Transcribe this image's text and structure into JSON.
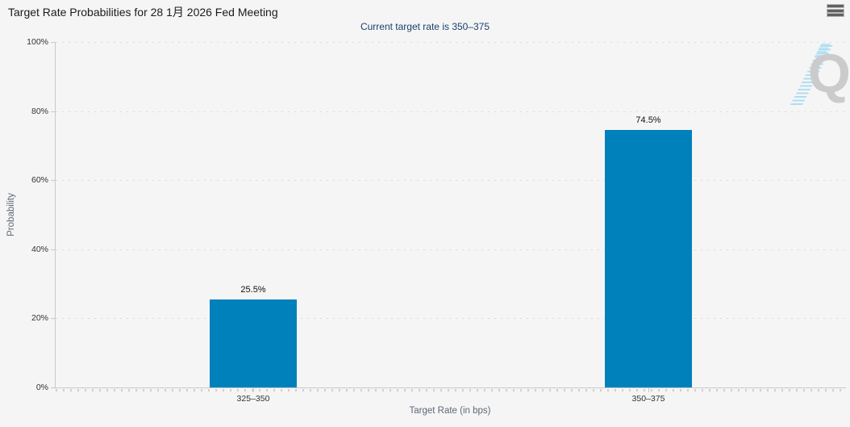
{
  "header": {
    "title": "Target Rate Probabilities for 28 1月 2026 Fed Meeting",
    "subtitle": "Current target rate is 350–375",
    "menu_icon": "hamburger-icon"
  },
  "watermark": {
    "letter": "Q"
  },
  "colors": {
    "bar": "#0081bc",
    "background": "#f5f5f5",
    "subtitle": "#1b3f6e",
    "axis_line": "#c9c9c9",
    "grid_dot": "#dadada"
  },
  "chart_data": {
    "type": "bar",
    "title": "Target Rate Probabilities for 28 1月 2026 Fed Meeting",
    "subtitle": "Current target rate is 350–375",
    "categories": [
      "325–350",
      "350–375"
    ],
    "values": [
      25.5,
      74.5
    ],
    "value_labels": [
      "25.5%",
      "74.5%"
    ],
    "xlabel": "Target Rate (in bps)",
    "ylabel": "Probability",
    "ylim": [
      0,
      100
    ],
    "yticks": [
      {
        "label": "0%",
        "value": 0
      },
      {
        "label": "20%",
        "value": 20
      },
      {
        "label": "40%",
        "value": 40
      },
      {
        "label": "60%",
        "value": 60
      },
      {
        "label": "80%",
        "value": 80
      },
      {
        "label": "100%",
        "value": 100
      }
    ],
    "grid": "horizontal-dotted",
    "legend": "none",
    "bar_color": "#0081bc"
  }
}
